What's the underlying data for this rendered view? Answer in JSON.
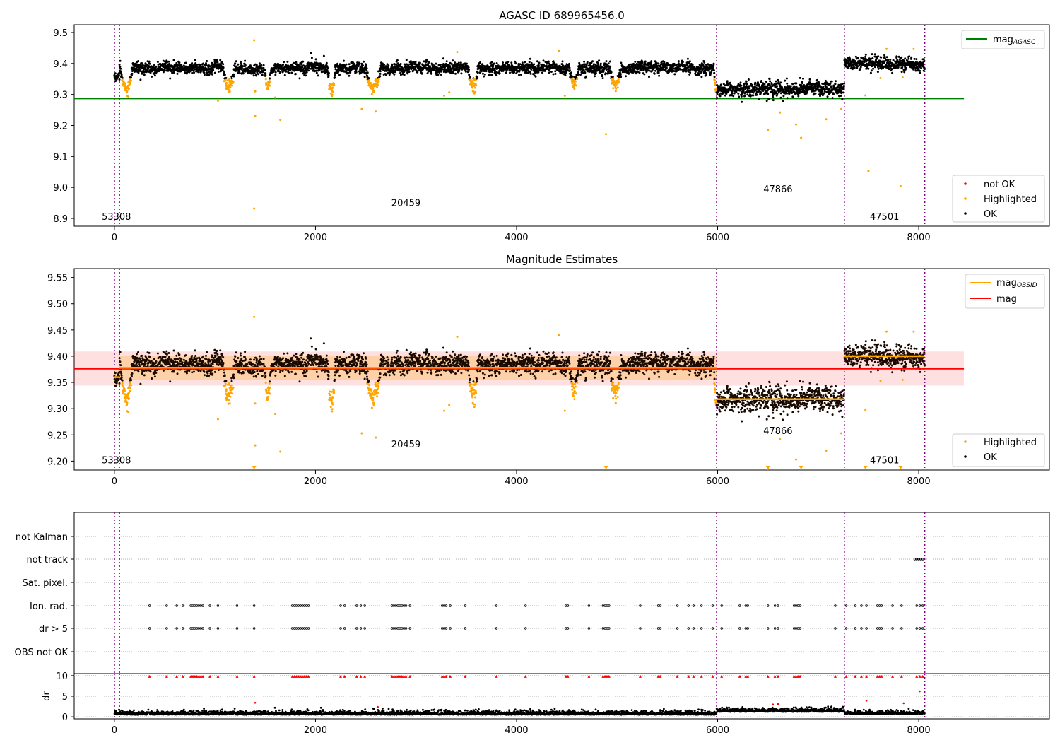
{
  "chart_data": [
    {
      "type": "scatter",
      "title": "AGASC ID 689965456.0",
      "xlim": [
        -400,
        9300
      ],
      "ylim": [
        8.875,
        9.525
      ],
      "xticks": [
        0,
        2000,
        4000,
        6000,
        8000
      ],
      "yticks": [
        8.9,
        9.0,
        9.1,
        9.2,
        9.3,
        9.4,
        9.5
      ],
      "ytick_labels": [
        "8.9",
        "9.0",
        "9.1",
        "9.2",
        "9.3",
        "9.4",
        "9.5"
      ],
      "vlines": [
        0,
        50,
        5990,
        7260,
        8060
      ],
      "hline": {
        "name": "mag",
        "sub": "AGASC",
        "y": 9.287,
        "x": [
          -400,
          8450
        ],
        "color": "#008000"
      },
      "legend_top": [
        {
          "label": "mag",
          "sub": "AGASC",
          "color": "#008000",
          "kind": "line"
        }
      ],
      "legend_bottom": [
        {
          "label": "not OK",
          "color": "#ff0000"
        },
        {
          "label": "Highlighted",
          "color": "#ffa500"
        },
        {
          "label": "OK",
          "color": "#000000"
        }
      ],
      "obsid_labels": [
        {
          "text": "53308",
          "x": 20,
          "y": 8.895
        },
        {
          "text": "20459",
          "x": 2900,
          "y": 8.94
        },
        {
          "text": "47866",
          "x": 6600,
          "y": 8.985
        },
        {
          "text": "47501",
          "x": 7660,
          "y": 8.895
        }
      ],
      "segments": [
        {
          "x0": 0,
          "x1": 50,
          "y": 9.36,
          "sigma": 0.01
        },
        {
          "x0": 50,
          "x1": 5990,
          "y": 9.385,
          "sigma": 0.012
        },
        {
          "x0": 5990,
          "x1": 7260,
          "y": 9.32,
          "sigma": 0.016
        },
        {
          "x0": 7260,
          "x1": 8060,
          "y": 9.4,
          "sigma": 0.013
        }
      ],
      "dips": [
        {
          "x0": 60,
          "x1": 180,
          "y": 9.32
        },
        {
          "x0": 1080,
          "x1": 1200,
          "y": 9.32
        },
        {
          "x0": 1490,
          "x1": 1560,
          "y": 9.325
        },
        {
          "x0": 2120,
          "x1": 2200,
          "y": 9.315
        },
        {
          "x0": 2500,
          "x1": 2650,
          "y": 9.32
        },
        {
          "x0": 3520,
          "x1": 3620,
          "y": 9.32
        },
        {
          "x0": 4520,
          "x1": 4620,
          "y": 9.33
        },
        {
          "x0": 4930,
          "x1": 5040,
          "y": 9.33
        },
        {
          "x0": 5960,
          "x1": 6020,
          "y": 9.31
        }
      ],
      "outliers": [
        {
          "x": 1390,
          "y": 9.475
        },
        {
          "x": 1400,
          "y": 9.23
        },
        {
          "x": 1390,
          "y": 8.932
        },
        {
          "x": 1400,
          "y": 9.31
        },
        {
          "x": 1600,
          "y": 9.29
        },
        {
          "x": 1650,
          "y": 9.218
        },
        {
          "x": 2460,
          "y": 9.253
        },
        {
          "x": 2600,
          "y": 9.245
        },
        {
          "x": 1030,
          "y": 9.28
        },
        {
          "x": 3280,
          "y": 9.296
        },
        {
          "x": 3330,
          "y": 9.307
        },
        {
          "x": 3410,
          "y": 9.437
        },
        {
          "x": 4420,
          "y": 9.44
        },
        {
          "x": 4480,
          "y": 9.296
        },
        {
          "x": 4890,
          "y": 9.172
        },
        {
          "x": 6500,
          "y": 9.185
        },
        {
          "x": 6620,
          "y": 9.242
        },
        {
          "x": 6780,
          "y": 9.203
        },
        {
          "x": 6830,
          "y": 9.16
        },
        {
          "x": 7080,
          "y": 9.22
        },
        {
          "x": 7230,
          "y": 9.253
        },
        {
          "x": 7470,
          "y": 9.297
        },
        {
          "x": 7500,
          "y": 9.053
        },
        {
          "x": 7620,
          "y": 9.353
        },
        {
          "x": 7680,
          "y": 9.447
        },
        {
          "x": 7820,
          "y": 9.004
        },
        {
          "x": 7950,
          "y": 9.447
        },
        {
          "x": 7840,
          "y": 9.355
        }
      ]
    },
    {
      "type": "scatter",
      "title": "Magnitude Estimates",
      "xlim": [
        -400,
        9300
      ],
      "ylim": [
        9.183,
        9.567
      ],
      "xticks": [
        0,
        2000,
        4000,
        6000,
        8000
      ],
      "yticks": [
        9.2,
        9.25,
        9.3,
        9.35,
        9.4,
        9.45,
        9.5,
        9.55
      ],
      "ytick_labels": [
        "9.20",
        "9.25",
        "9.30",
        "9.35",
        "9.40",
        "9.45",
        "9.50",
        "9.55"
      ],
      "vlines": [
        0,
        50,
        5990,
        7260,
        8060
      ],
      "mag": {
        "name": "mag",
        "y": 9.376,
        "band": [
          9.344,
          9.409
        ],
        "x": [
          -400,
          8450
        ],
        "color": "#ff0000"
      },
      "mag_obsid": {
        "name": "mag",
        "sub": "OBSID",
        "color": "#ffa500",
        "segments": [
          {
            "x0": 0,
            "x1": 50,
            "y": 9.36,
            "band": [
              9.345,
              9.375
            ]
          },
          {
            "x0": 50,
            "x1": 5990,
            "y": 9.378,
            "band": [
              9.355,
              9.4
            ]
          },
          {
            "x0": 5990,
            "x1": 7260,
            "y": 9.318,
            "band": [
              9.318,
              9.318
            ]
          },
          {
            "x0": 7260,
            "x1": 8060,
            "y": 9.4,
            "band": [
              9.4,
              9.4
            ]
          }
        ]
      },
      "legend_top": [
        {
          "label": "mag",
          "sub": "OBSID",
          "color": "#ffa500",
          "kind": "line"
        },
        {
          "label": "mag",
          "color": "#ff0000",
          "kind": "line"
        }
      ],
      "legend_bottom": [
        {
          "label": "Highlighted",
          "color": "#ffa500"
        },
        {
          "label": "OK",
          "color": "#000000"
        }
      ],
      "obsid_labels": [
        {
          "text": "53308",
          "x": 20,
          "y": 9.196
        },
        {
          "text": "20459",
          "x": 2900,
          "y": 9.226
        },
        {
          "text": "47866",
          "x": 6600,
          "y": 9.252
        },
        {
          "text": "47501",
          "x": 7660,
          "y": 9.196
        }
      ],
      "clipped_x": [
        1390,
        4890,
        6500,
        6830,
        7470,
        7820
      ]
    },
    {
      "type": "scatter",
      "xlim": [
        -400,
        9300
      ],
      "xticks": [
        0,
        2000,
        4000,
        6000,
        8000
      ],
      "vlines": [
        0,
        50,
        5990,
        7260,
        8060
      ],
      "flag_rows": [
        "not Kalman",
        "not track",
        "Sat. pixel.",
        "Ion. rad.",
        "dr > 5",
        "OBS not OK"
      ],
      "flag_events": {
        "not track": [
          7960,
          7980,
          8000,
          8020,
          8040
        ],
        "Ion. rad.": [
          350,
          520,
          620,
          680,
          760,
          780,
          800,
          820,
          840,
          860,
          880,
          950,
          1030,
          1220,
          1390,
          1770,
          1790,
          1810,
          1830,
          1850,
          1870,
          1890,
          1910,
          1930,
          2250,
          2290,
          2410,
          2450,
          2490,
          2760,
          2780,
          2800,
          2820,
          2840,
          2860,
          2880,
          2900,
          2940,
          3260,
          3280,
          3300,
          3340,
          3490,
          3800,
          4090,
          4490,
          4510,
          4720,
          4860,
          4880,
          4900,
          4920,
          5230,
          5410,
          5430,
          5600,
          5710,
          5760,
          5840,
          5950,
          6040,
          6220,
          6280,
          6300,
          6500,
          6570,
          6600,
          6760,
          6780,
          6800,
          6820,
          7170,
          7280,
          7370,
          7430,
          7480,
          7590,
          7610,
          7630,
          7740,
          7830,
          7980,
          8010,
          8040
        ],
        "dr > 5": [
          350,
          520,
          620,
          680,
          760,
          780,
          800,
          820,
          840,
          860,
          880,
          950,
          1030,
          1220,
          1390,
          1770,
          1790,
          1810,
          1830,
          1850,
          1870,
          1890,
          1910,
          1930,
          2250,
          2290,
          2410,
          2450,
          2490,
          2760,
          2780,
          2800,
          2820,
          2840,
          2860,
          2880,
          2900,
          2940,
          3260,
          3280,
          3300,
          3340,
          3490,
          3800,
          4090,
          4490,
          4510,
          4720,
          4860,
          4880,
          4900,
          4920,
          5230,
          5410,
          5430,
          5600,
          5710,
          5760,
          5840,
          5950,
          6040,
          6220,
          6280,
          6300,
          6500,
          6570,
          6600,
          6760,
          6780,
          6800,
          6820,
          7170,
          7280,
          7370,
          7430,
          7480,
          7590,
          7610,
          7630,
          7740,
          7830,
          7980,
          8010,
          8040
        ]
      },
      "dr": {
        "ylabel": "dr",
        "ylim": [
          -0.5,
          10.5
        ],
        "yticks": [
          0,
          5,
          10
        ],
        "ytick_labels": [
          "0",
          "5",
          "10"
        ],
        "segments": [
          {
            "x0": 0,
            "x1": 5990,
            "y": 0.7
          },
          {
            "x0": 5990,
            "x1": 7260,
            "y": 1.4
          },
          {
            "x0": 7260,
            "x1": 8060,
            "y": 0.8
          }
        ],
        "extra_points": [
          {
            "x": 1400,
            "y": 3.4
          },
          {
            "x": 2620,
            "y": 2.4
          },
          {
            "x": 6550,
            "y": 3.0
          },
          {
            "x": 6600,
            "y": 3.1
          },
          {
            "x": 7480,
            "y": 3.9
          },
          {
            "x": 7850,
            "y": 3.3
          },
          {
            "x": 8010,
            "y": 6.2
          }
        ],
        "clipped_color": "#ff0000"
      }
    }
  ]
}
